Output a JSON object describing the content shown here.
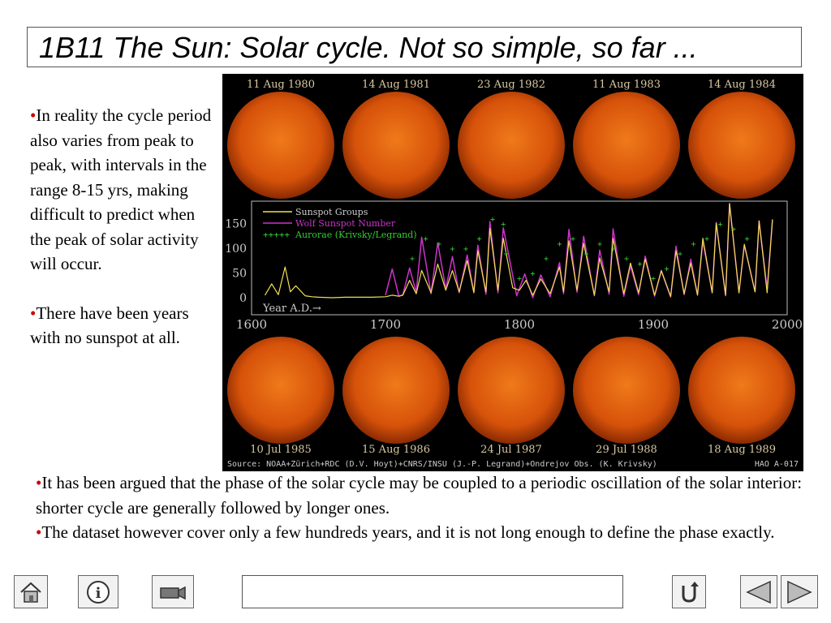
{
  "slide": {
    "title": "1B11 The Sun: Solar cycle. Not so simple, so far ...",
    "left_bullets": [
      "In reality the cycle period also varies from peak to peak, with intervals in the range 8-15 yrs, making difficult to predict when the peak of solar activity will occur.",
      "There have been years with no sunspot at all."
    ],
    "bottom_bullets": [
      "It has been argued that the phase of the solar cycle may be  coupled to a periodic oscillation of the solar interior: shorter cycle are generally followed by longer ones.",
      "The dataset  however cover only a few hundreds years, and it is not long enough to define the phase exactly."
    ],
    "bullet_char": "•"
  },
  "figure": {
    "top_dates": [
      "11 Aug 1980",
      "14 Aug 1981",
      "23 Aug 1982",
      "11 Aug 1983",
      "14 Aug 1984"
    ],
    "bottom_dates": [
      "10 Jul 1985",
      "15 Aug 1986",
      "24 Jul 1987",
      "29 Jul 1988",
      "18 Aug 1989"
    ],
    "source": "Source: NOAA+Zürich+RDC (D.V. Hoyt)+CNRS/INSU (J.-P. Legrand)+Ondrejov Obs. (K. Krivsky)",
    "code": "HAO A-017",
    "colors": {
      "groups": "#f0e050",
      "wolf": "#cc33cc",
      "aurorae": "#33cc33",
      "text": "#cccccc",
      "sun": "#e05a0a"
    }
  },
  "chart_data": {
    "type": "line",
    "xlabel": "Year A.D.→",
    "ylabel": "",
    "xlim": [
      1600,
      2000
    ],
    "ylim": [
      0,
      190
    ],
    "x_ticks": [
      "1600",
      "1700",
      "1800",
      "1900",
      "2000"
    ],
    "y_ticks": [
      "0",
      "50",
      "100",
      "150"
    ],
    "legend_position": "top-left",
    "series": [
      {
        "name": "Sunspot Groups",
        "x": [
          1610,
          1615,
          1620,
          1625,
          1629,
          1633,
          1640,
          1645,
          1650,
          1660,
          1670,
          1680,
          1690,
          1700,
          1705,
          1710,
          1713,
          1718,
          1723,
          1727,
          1734,
          1739,
          1745,
          1750,
          1755,
          1761,
          1766,
          1769,
          1775,
          1778,
          1784,
          1788,
          1795,
          1800,
          1805,
          1810,
          1816,
          1823,
          1830,
          1833,
          1837,
          1843,
          1848,
          1856,
          1860,
          1867,
          1870,
          1878,
          1883,
          1889,
          1894,
          1901,
          1906,
          1913,
          1917,
          1923,
          1928,
          1933,
          1937,
          1944,
          1947,
          1954,
          1957,
          1964,
          1968,
          1976,
          1979,
          1985,
          1989
        ],
        "y": [
          5,
          28,
          6,
          62,
          12,
          24,
          4,
          2,
          1,
          0,
          1,
          1,
          1,
          2,
          5,
          3,
          5,
          35,
          8,
          55,
          10,
          68,
          15,
          55,
          12,
          75,
          10,
          95,
          12,
          140,
          15,
          120,
          20,
          15,
          35,
          5,
          38,
          8,
          62,
          12,
          115,
          15,
          110,
          5,
          80,
          12,
          120,
          8,
          70,
          10,
          78,
          5,
          55,
          3,
          95,
          8,
          70,
          5,
          120,
          10,
          150,
          5,
          190,
          10,
          108,
          12,
          155,
          10,
          158
        ]
      },
      {
        "name": "Wolf Sunspot Number",
        "x": [
          1700,
          1705,
          1710,
          1713,
          1718,
          1723,
          1727,
          1734,
          1739,
          1745,
          1750,
          1755,
          1761,
          1766,
          1769,
          1775,
          1778,
          1784,
          1788,
          1798,
          1804,
          1810,
          1816,
          1823,
          1830,
          1833,
          1837,
          1843,
          1848,
          1856,
          1860,
          1867,
          1870,
          1878,
          1883,
          1889,
          1894,
          1901,
          1906,
          1913,
          1917,
          1923,
          1928,
          1933,
          1937,
          1944,
          1947,
          1954,
          1957,
          1964,
          1968,
          1976,
          1979,
          1985,
          1989
        ],
        "y": [
          5,
          58,
          3,
          6,
          60,
          11,
          122,
          8,
          111,
          18,
          83,
          10,
          86,
          11,
          106,
          7,
          154,
          10,
          141,
          4,
          48,
          0,
          46,
          2,
          71,
          8,
          138,
          11,
          124,
          4,
          96,
          7,
          139,
          3,
          64,
          6,
          84,
          3,
          54,
          1,
          104,
          6,
          78,
          6,
          114,
          10,
          152,
          4,
          190,
          10,
          106,
          12,
          155,
          18,
          158
        ]
      },
      {
        "name": "Aurorae (Krivsky/Legrand)",
        "x": [
          1720,
          1730,
          1740,
          1750,
          1760,
          1770,
          1780,
          1788,
          1790,
          1800,
          1810,
          1820,
          1830,
          1840,
          1850,
          1860,
          1870,
          1880,
          1890,
          1900,
          1910,
          1920,
          1930,
          1940,
          1950,
          1960,
          1970
        ],
        "y": [
          80,
          120,
          110,
          100,
          100,
          120,
          160,
          150,
          90,
          40,
          50,
          80,
          110,
          120,
          90,
          110,
          100,
          80,
          70,
          40,
          60,
          90,
          110,
          120,
          150,
          140,
          120
        ]
      }
    ]
  },
  "toolbar": {
    "home_icon": "home-icon",
    "info_icon": "info-icon",
    "camera_icon": "camera-icon",
    "return_icon": "return-icon",
    "prev_icon": "triangle-left-icon",
    "next_icon": "triangle-right-icon",
    "nav_value": ""
  }
}
